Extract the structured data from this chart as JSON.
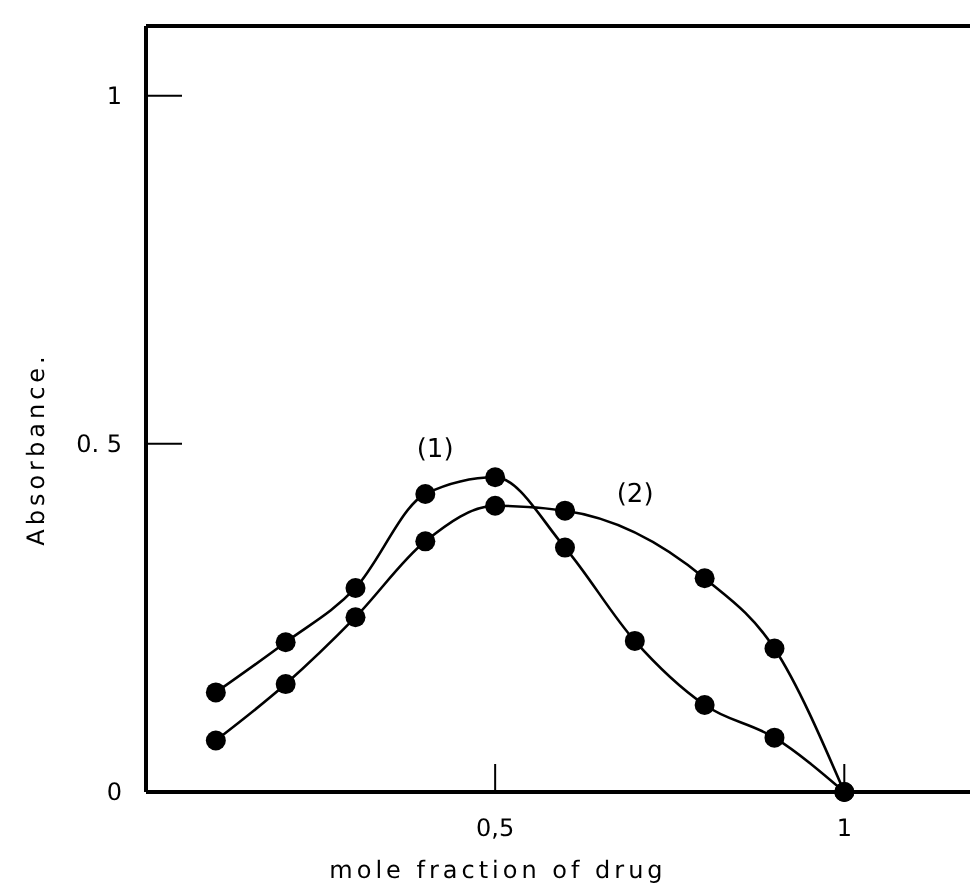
{
  "chart_data": {
    "type": "line",
    "xlabel": "mole fraction of drug",
    "ylabel": "Absorbance.",
    "x": [
      0.1,
      0.2,
      0.3,
      0.4,
      0.5,
      0.6,
      0.7,
      0.8,
      0.9,
      1.0
    ],
    "series": [
      {
        "name": "(1)",
        "color": "#000000",
        "values": [
          0.143,
          0.215,
          0.293,
          0.428,
          0.452,
          0.351,
          0.217,
          0.125,
          0.078,
          0
        ]
      },
      {
        "name": "(2)",
        "color": "#000000",
        "values": [
          0.074,
          0.155,
          0.251,
          0.36,
          0.411,
          0.404,
          null,
          0.307,
          0.206,
          0
        ]
      }
    ],
    "xlim": [
      0,
      1.18
    ],
    "ylim": [
      0,
      1.1
    ],
    "xticks": [
      {
        "value": 0.5,
        "label": "0,5"
      },
      1
    ],
    "yticks": [
      0,
      {
        "value": 0.5,
        "label": "0. 5"
      },
      1
    ],
    "marker": "circle",
    "line_style": "solid",
    "grid": false
  }
}
